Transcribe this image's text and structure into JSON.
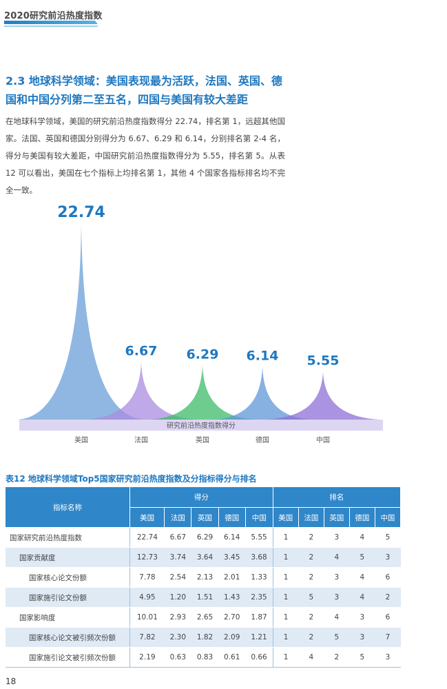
{
  "header": {
    "title": "2020研究前沿热度指数"
  },
  "section": {
    "title": "2.3 地球科学领域：美国表现最为活跃，法国、英国、德国和中国分列第二至五名，四国与美国有较大差距",
    "paragraph": "在地球科学领域，美国的研究前沿热度指数得分 22.74，排名第 1，远超其他国家。法国、英国和德国分别得分为 6.67、6.29 和 6.14，分别排名第 2-4 名，得分与美国有较大差距，中国研究前沿热度指数得分为 5.55，排名第 5。从表 12 可以看出，美国在七个指标上均排名第 1，其他 4 个国家各指标排名均不完全一致。"
  },
  "chart_data": {
    "type": "bar",
    "categories": [
      "美国",
      "法国",
      "英国",
      "德国",
      "中国"
    ],
    "values": [
      22.74,
      6.67,
      6.29,
      6.14,
      5.55
    ],
    "value_labels": [
      "22.74",
      "6.67",
      "6.29",
      "6.14",
      "5.55"
    ],
    "baseline_label": "研究前沿热度指数得分",
    "colors": [
      "#6a9fd8",
      "#a98ce0",
      "#3dbb6a",
      "#5f97d6",
      "#8d6fd6"
    ],
    "label_color": "#1e78c0"
  },
  "table": {
    "caption": "表12  地球科学领域Top5国家研究前沿热度指数及分指标得分与排名",
    "header_name": "指标名称",
    "group_score": "得分",
    "group_rank": "排名",
    "countries": [
      "美国",
      "法国",
      "英国",
      "德国",
      "中国"
    ],
    "rows": [
      {
        "name": "国家研究前沿热度指数",
        "scores": [
          "22.74",
          "6.67",
          "6.29",
          "6.14",
          "5.55"
        ],
        "ranks": [
          "1",
          "2",
          "3",
          "4",
          "5"
        ]
      },
      {
        "name": "国家贡献度",
        "scores": [
          "12.73",
          "3.74",
          "3.64",
          "3.45",
          "3.68"
        ],
        "ranks": [
          "1",
          "2",
          "4",
          "5",
          "3"
        ]
      },
      {
        "name": "国家核心论文份额",
        "scores": [
          "7.78",
          "2.54",
          "2.13",
          "2.01",
          "1.33"
        ],
        "ranks": [
          "1",
          "2",
          "3",
          "4",
          "6"
        ]
      },
      {
        "name": "国家施引论文份额",
        "scores": [
          "4.95",
          "1.20",
          "1.51",
          "1.43",
          "2.35"
        ],
        "ranks": [
          "1",
          "5",
          "3",
          "4",
          "2"
        ]
      },
      {
        "name": "国家影响度",
        "scores": [
          "10.01",
          "2.93",
          "2.65",
          "2.70",
          "1.87"
        ],
        "ranks": [
          "1",
          "2",
          "4",
          "3",
          "6"
        ]
      },
      {
        "name": "国家核心论文被引频次份额",
        "scores": [
          "7.82",
          "2.30",
          "1.82",
          "2.09",
          "1.21"
        ],
        "ranks": [
          "1",
          "2",
          "5",
          "3",
          "7"
        ]
      },
      {
        "name": "国家施引论文被引频次份额",
        "scores": [
          "2.19",
          "0.63",
          "0.83",
          "0.61",
          "0.66"
        ],
        "ranks": [
          "1",
          "4",
          "2",
          "5",
          "3"
        ]
      }
    ]
  },
  "footer": {
    "page_number": "18"
  }
}
